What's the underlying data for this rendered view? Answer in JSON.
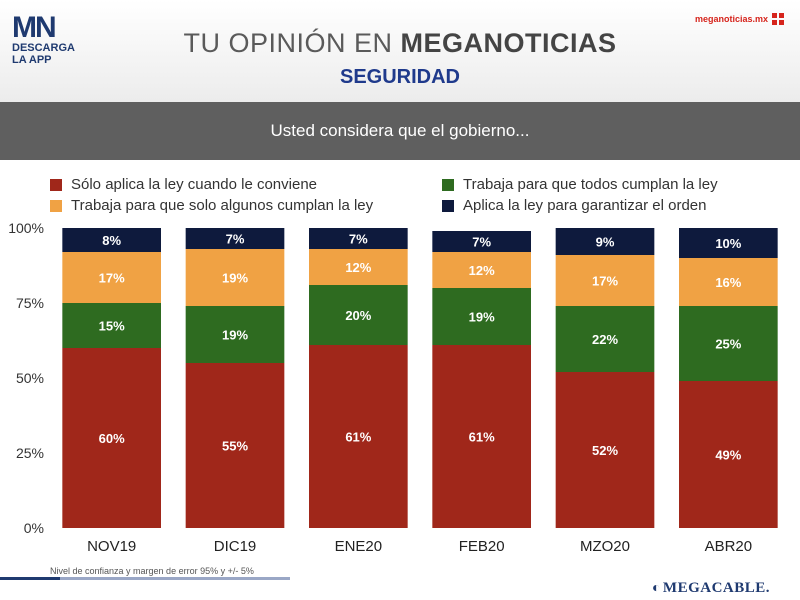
{
  "header": {
    "logo_mark": "MN",
    "logo_line1": "DESCARGA",
    "logo_line2": "LA APP",
    "title_light": "TU OPINIÓN EN ",
    "title_bold": "MEGANOTICIAS",
    "subtitle": "SEGURIDAD",
    "site": "meganoticias.mx"
  },
  "question": "Usted considera que el gobierno...",
  "footer": {
    "note": "Nivel de confianza y margen de error 95% y +/- 5%",
    "brand": "MEGACABLE."
  },
  "colors": {
    "s1": "#a0271a",
    "s2": "#2e6b20",
    "s3": "#f0a244",
    "s4": "#0e1a3d"
  },
  "chart_data": {
    "type": "bar",
    "stacked": true,
    "categories": [
      "NOV19",
      "DIC19",
      "ENE20",
      "FEB20",
      "MZO20",
      "ABR20"
    ],
    "series": [
      {
        "name": "Sólo aplica la ley cuando le conviene",
        "values": [
          60,
          55,
          61,
          61,
          52,
          49
        ],
        "labels": [
          "60%",
          "55%",
          "61%",
          "61%",
          "52%",
          "49%"
        ]
      },
      {
        "name": "Trabaja para que todos cumplan la ley",
        "values": [
          15,
          19,
          20,
          19,
          22,
          25
        ],
        "labels": [
          "15%",
          "19%",
          "20%",
          "19%",
          "22%",
          "25%"
        ]
      },
      {
        "name": "Trabaja para que solo algunos cumplan la ley",
        "values": [
          17,
          19,
          12,
          12,
          17,
          16
        ],
        "labels": [
          "17%",
          "19%",
          "12%",
          "12%",
          "17%",
          "16%"
        ]
      },
      {
        "name": "Aplica la ley para garantizar el orden",
        "values": [
          8,
          7,
          7,
          7,
          9,
          10
        ],
        "labels": [
          "8%",
          "7%",
          "7%",
          "7%",
          "9%",
          "10%"
        ]
      }
    ],
    "yticks": [
      0,
      25,
      50,
      75,
      100
    ],
    "ytick_labels": [
      "0%",
      "25%",
      "50%",
      "75%",
      "100%"
    ],
    "ylim": [
      0,
      100
    ],
    "legend_position": "top",
    "grid": false
  }
}
